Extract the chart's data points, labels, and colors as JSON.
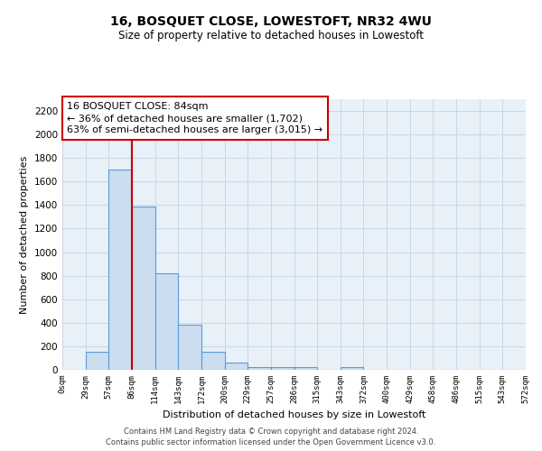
{
  "title": "16, BOSQUET CLOSE, LOWESTOFT, NR32 4WU",
  "subtitle": "Size of property relative to detached houses in Lowestoft",
  "xlabel": "Distribution of detached houses by size in Lowestoft",
  "ylabel": "Number of detached properties",
  "bin_labels": [
    "0sqm",
    "29sqm",
    "57sqm",
    "86sqm",
    "114sqm",
    "143sqm",
    "172sqm",
    "200sqm",
    "229sqm",
    "257sqm",
    "286sqm",
    "315sqm",
    "343sqm",
    "372sqm",
    "400sqm",
    "429sqm",
    "458sqm",
    "486sqm",
    "515sqm",
    "543sqm",
    "572sqm"
  ],
  "bar_values": [
    0,
    155,
    1700,
    1390,
    820,
    380,
    155,
    65,
    25,
    25,
    25,
    0,
    20,
    0,
    0,
    0,
    0,
    0,
    0,
    0
  ],
  "bar_color": "#ccddf0",
  "bar_edge_color": "#5b9bd5",
  "ylim": [
    0,
    2300
  ],
  "yticks": [
    0,
    200,
    400,
    600,
    800,
    1000,
    1200,
    1400,
    1600,
    1800,
    2000,
    2200
  ],
  "red_line_bin_index": 3,
  "property_line_color": "#cc0000",
  "annotation_title": "16 BOSQUET CLOSE: 84sqm",
  "annotation_line1": "← 36% of detached houses are smaller (1,702)",
  "annotation_line2": "63% of semi-detached houses are larger (3,015) →",
  "annotation_box_color": "#ffffff",
  "annotation_box_edge": "#cc0000",
  "footer_line1": "Contains HM Land Registry data © Crown copyright and database right 2024.",
  "footer_line2": "Contains public sector information licensed under the Open Government Licence v3.0.",
  "grid_color": "#c8d8e8",
  "background_color": "#e8f0f8"
}
